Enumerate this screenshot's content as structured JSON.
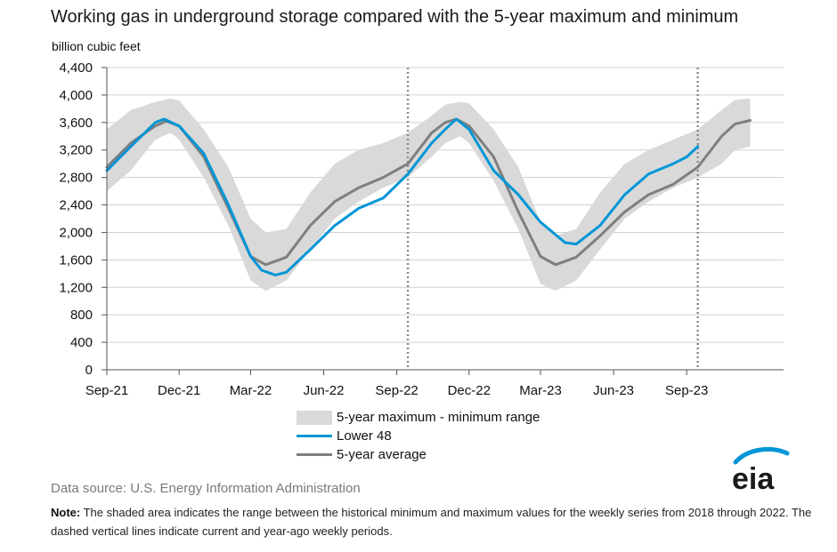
{
  "title": "Working gas in underground  storage compared with the 5-year maximum  and minimum",
  "unit": "billion cubic feet",
  "chart_data": {
    "type": "area",
    "ylim": [
      0,
      4400
    ],
    "yticks": [
      "4,400",
      "4,000",
      "3,600",
      "3,200",
      "2,800",
      "2,400",
      "2,000",
      "1,600",
      "1,200",
      "800",
      "400",
      "0"
    ],
    "ytick_values": [
      4400,
      4000,
      3600,
      3200,
      2800,
      2400,
      2000,
      1600,
      1200,
      800,
      400,
      0
    ],
    "x_range": [
      "2021-09-01",
      "2024-01-01"
    ],
    "xticks": [
      {
        "label": "Sep-21",
        "date": "2021-09-01"
      },
      {
        "label": "Dec-21",
        "date": "2021-12-01"
      },
      {
        "label": "Mar-22",
        "date": "2022-03-01"
      },
      {
        "label": "Jun-22",
        "date": "2022-06-01"
      },
      {
        "label": "Sep-22",
        "date": "2022-09-01"
      },
      {
        "label": "Dec-22",
        "date": "2022-12-01"
      },
      {
        "label": "Mar-23",
        "date": "2023-03-01"
      },
      {
        "label": "Jun-23",
        "date": "2023-06-01"
      },
      {
        "label": "Sep-23",
        "date": "2023-09-01"
      }
    ],
    "vlines": [
      "2022-09-15",
      "2023-09-15"
    ],
    "grid": true,
    "series": [
      {
        "name": "5-year maximum - minimum range",
        "color": "#d9d9d9",
        "x": [
          "2021-09-01",
          "2021-10-01",
          "2021-11-01",
          "2021-11-20",
          "2021-12-01",
          "2022-01-01",
          "2022-02-01",
          "2022-03-01",
          "2022-03-20",
          "2022-04-15",
          "2022-05-15",
          "2022-06-15",
          "2022-07-15",
          "2022-08-15",
          "2022-09-15",
          "2022-10-15",
          "2022-11-01",
          "2022-11-20",
          "2022-12-01",
          "2023-01-01",
          "2023-02-01",
          "2023-03-01",
          "2023-03-20",
          "2023-04-15",
          "2023-05-15",
          "2023-06-15",
          "2023-07-15",
          "2023-08-15",
          "2023-09-15",
          "2023-10-15",
          "2023-11-01",
          "2023-11-20"
        ],
        "upper": [
          3500,
          3780,
          3900,
          3950,
          3920,
          3500,
          2950,
          2200,
          2000,
          2050,
          2580,
          3000,
          3200,
          3300,
          3450,
          3700,
          3860,
          3900,
          3880,
          3500,
          2950,
          2150,
          1950,
          2050,
          2580,
          3000,
          3200,
          3350,
          3500,
          3780,
          3930,
          3950
        ],
        "lower": [
          2600,
          2900,
          3350,
          3450,
          3350,
          2800,
          2100,
          1300,
          1150,
          1300,
          1750,
          2200,
          2450,
          2650,
          2800,
          3100,
          3300,
          3400,
          3300,
          2750,
          2050,
          1250,
          1150,
          1300,
          1750,
          2200,
          2450,
          2650,
          2800,
          3000,
          3200,
          3250
        ]
      },
      {
        "name": "Lower 48",
        "color": "#0096d6",
        "x": [
          "2021-09-01",
          "2021-10-01",
          "2021-11-01",
          "2021-11-12",
          "2021-12-01",
          "2022-01-01",
          "2022-02-01",
          "2022-03-01",
          "2022-03-15",
          "2022-04-01",
          "2022-04-15",
          "2022-05-15",
          "2022-06-15",
          "2022-07-15",
          "2022-08-15",
          "2022-09-15",
          "2022-10-15",
          "2022-11-01",
          "2022-11-15",
          "2022-12-01",
          "2023-01-01",
          "2023-02-01",
          "2023-03-01",
          "2023-04-01",
          "2023-04-15",
          "2023-05-15",
          "2023-06-15",
          "2023-07-15",
          "2023-08-15",
          "2023-09-01",
          "2023-09-15"
        ],
        "values": [
          2900,
          3250,
          3600,
          3650,
          3550,
          3150,
          2400,
          1650,
          1450,
          1380,
          1420,
          1750,
          2100,
          2350,
          2500,
          2850,
          3300,
          3500,
          3650,
          3500,
          2900,
          2550,
          2150,
          1850,
          1830,
          2100,
          2550,
          2850,
          3000,
          3100,
          3250
        ]
      },
      {
        "name": "5-year average",
        "color": "#7f7f7f",
        "x": [
          "2021-09-01",
          "2021-10-01",
          "2021-11-01",
          "2021-11-15",
          "2021-12-01",
          "2022-01-01",
          "2022-02-01",
          "2022-03-01",
          "2022-03-20",
          "2022-04-15",
          "2022-05-15",
          "2022-06-15",
          "2022-07-15",
          "2022-08-15",
          "2022-09-15",
          "2022-10-15",
          "2022-11-01",
          "2022-11-15",
          "2022-12-01",
          "2023-01-01",
          "2023-02-01",
          "2023-03-01",
          "2023-03-20",
          "2023-04-15",
          "2023-05-15",
          "2023-06-15",
          "2023-07-15",
          "2023-08-15",
          "2023-09-15",
          "2023-10-15",
          "2023-11-01",
          "2023-11-20"
        ],
        "values": [
          2950,
          3300,
          3550,
          3620,
          3550,
          3100,
          2350,
          1650,
          1530,
          1640,
          2100,
          2450,
          2650,
          2800,
          3000,
          3450,
          3600,
          3650,
          3550,
          3100,
          2300,
          1650,
          1530,
          1640,
          1950,
          2300,
          2550,
          2700,
          2950,
          3400,
          3580,
          3630
        ]
      }
    ]
  },
  "legend": {
    "range_label": "5-year maximum - minimum range",
    "lower48_label": "Lower 48",
    "avg_label": "5-year average"
  },
  "source": "Data source:  U.S. Energy Information Administration",
  "note_label": "Note:",
  "note_text": " The shaded area indicates the range between the historical minimum and maximum values for the weekly series from 2018 through 2022. The dashed vertical lines indicate current and year-ago weekly periods.",
  "logo_text": "eia",
  "colors": {
    "brand": "#0096d6",
    "band": "#d9d9d9",
    "average": "#7f7f7f"
  }
}
